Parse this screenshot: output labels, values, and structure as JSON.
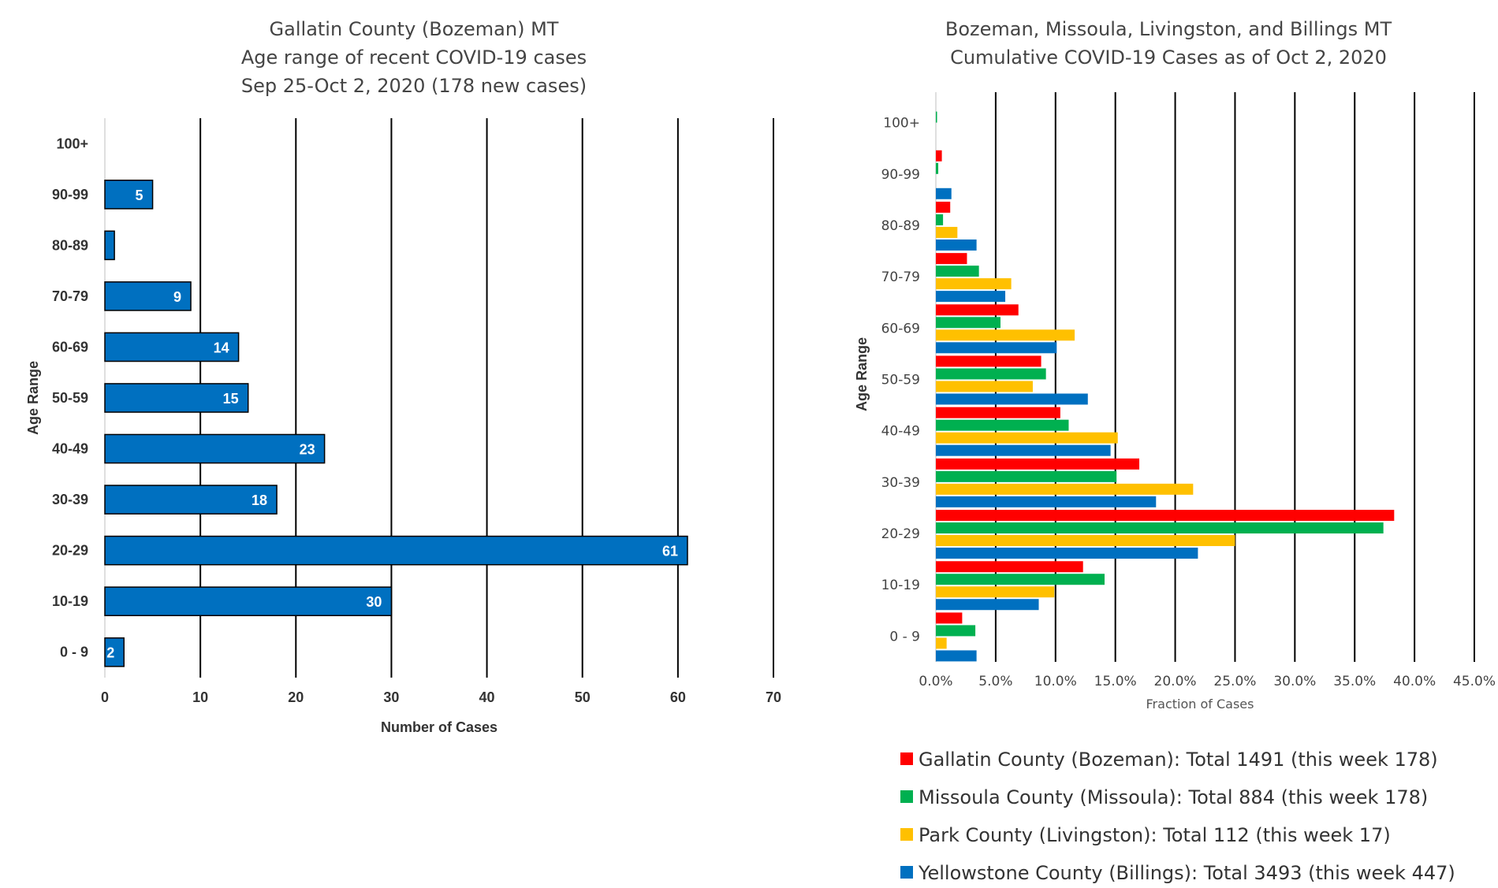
{
  "chart_data": [
    {
      "type": "bar",
      "orientation": "horizontal",
      "title_lines": [
        "Gallatin County (Bozeman) MT",
        "Age range of recent COVID-19 cases",
        "Sep 25-Oct 2, 2020 (178 new cases)"
      ],
      "xlabel": "Number of Cases",
      "ylabel": "Age Range",
      "categories": [
        "0 - 9",
        "10-19",
        "20-29",
        "30-39",
        "40-49",
        "50-59",
        "60-69",
        "70-79",
        "80-89",
        "90-99",
        "100+"
      ],
      "values": [
        2,
        30,
        61,
        18,
        23,
        15,
        14,
        9,
        1,
        5,
        0
      ],
      "data_labels": [
        "2",
        "30",
        "61",
        "18",
        "23",
        "15",
        "14",
        "9",
        "",
        "5",
        ""
      ],
      "xlim": [
        0,
        70
      ],
      "xticks": [
        "0",
        "10",
        "20",
        "30",
        "40",
        "50",
        "60",
        "70"
      ],
      "grid": "vertical",
      "color": "#0070C0"
    },
    {
      "type": "bar",
      "orientation": "horizontal",
      "title_lines": [
        "Bozeman, Missoula, Livingston, and Billings MT",
        "Cumulative COVID-19 Cases as of Oct 2, 2020"
      ],
      "xlabel": "Fraction of Cases",
      "ylabel": "Age Range",
      "categories": [
        "0 - 9",
        "10-19",
        "20-29",
        "30-39",
        "40-49",
        "50-59",
        "60-69",
        "70-79",
        "80-89",
        "90-99",
        "100+"
      ],
      "xlim": [
        0,
        45
      ],
      "xticks": [
        "0.0%",
        "5.0%",
        "10.0%",
        "15.0%",
        "20.0%",
        "25.0%",
        "30.0%",
        "35.0%",
        "40.0%",
        "45.0%"
      ],
      "grid": "vertical",
      "legend_position": "bottom",
      "series": [
        {
          "name": "Gallatin County (Bozeman): Total 1491 (this week 178)",
          "color": "#FF0000",
          "values": [
            2.2,
            12.3,
            38.3,
            17.0,
            10.4,
            8.8,
            6.9,
            2.6,
            1.2,
            0.5,
            0.0
          ]
        },
        {
          "name": "Missoula County (Missoula): Total 884 (this week 178)",
          "color": "#00B050",
          "values": [
            3.3,
            14.1,
            37.4,
            15.1,
            11.1,
            9.2,
            5.4,
            3.6,
            0.6,
            0.2,
            0.1
          ]
        },
        {
          "name": "Park County (Livingston): Total 112 (this week 17)",
          "color": "#FFC000",
          "values": [
            0.9,
            9.9,
            25.0,
            21.5,
            15.2,
            8.1,
            11.6,
            6.3,
            1.8,
            0.0,
            0.0
          ]
        },
        {
          "name": "Yellowstone County (Billings): Total 3493 (this week 447)",
          "color": "#0070C0",
          "values": [
            3.4,
            8.6,
            21.9,
            18.4,
            14.6,
            12.7,
            10.1,
            5.8,
            3.4,
            1.3,
            0.0
          ]
        }
      ]
    }
  ]
}
